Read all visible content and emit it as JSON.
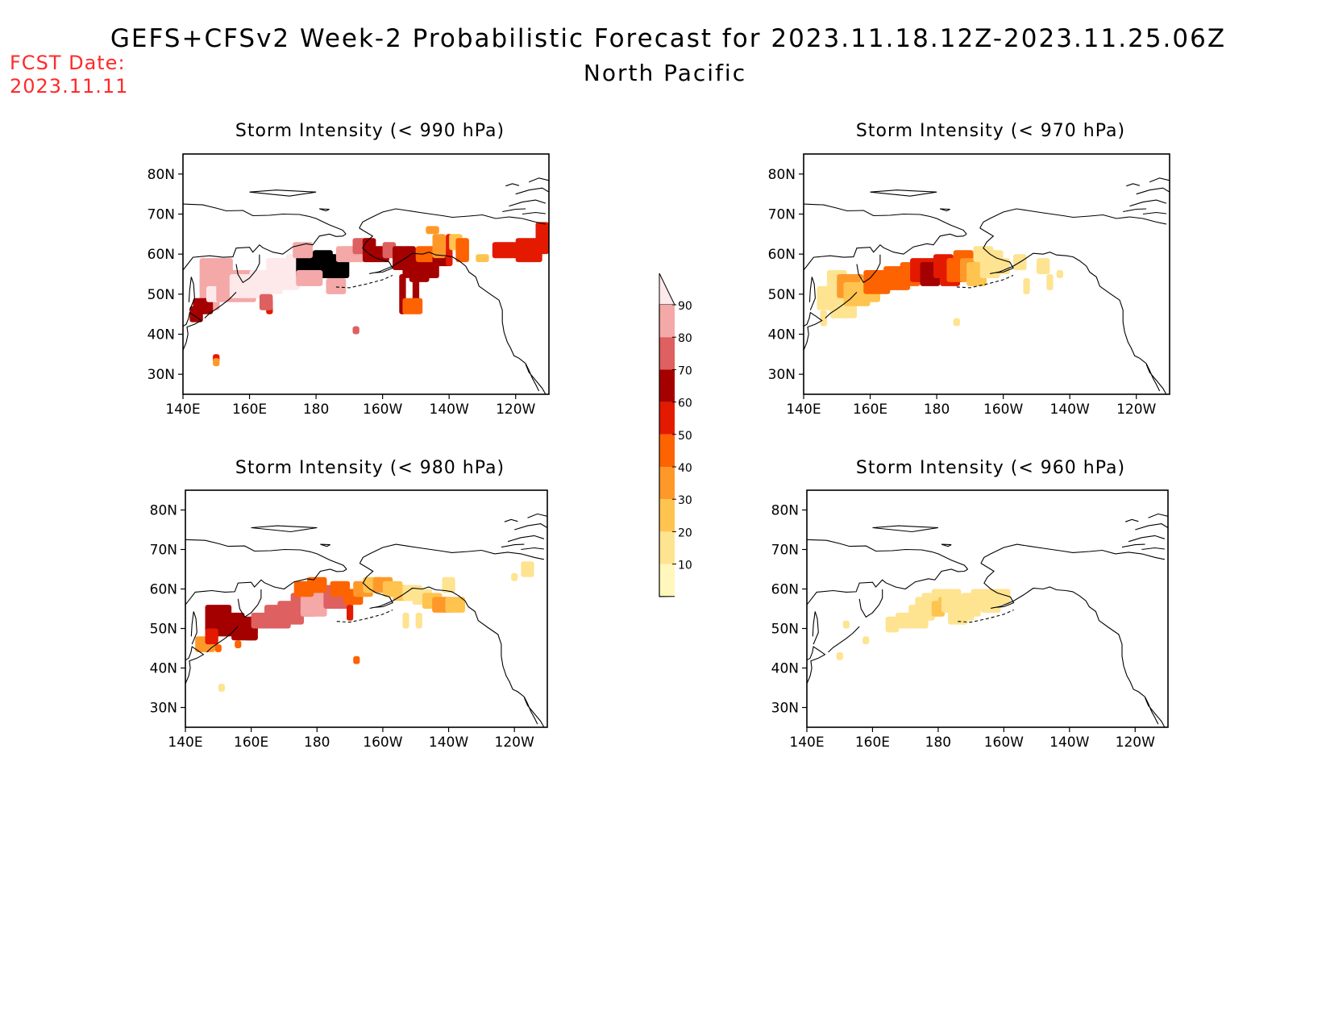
{
  "header": {
    "title": "GEFS+CFSv2 Week-2 Probabilistic Forecast for 2023.11.18.12Z-2023.11.25.06Z",
    "subtitle": "North Pacific",
    "fcst_label": "FCST Date:",
    "fcst_date": "2023.11.11"
  },
  "axes": {
    "lon_ticks": [
      "140E",
      "160E",
      "180",
      "160W",
      "140W",
      "120W"
    ],
    "lat_ticks": [
      "80N",
      "70N",
      "60N",
      "50N",
      "40N",
      "30N"
    ],
    "lon_values": [
      140,
      160,
      180,
      200,
      220,
      240
    ],
    "lat_values": [
      80,
      70,
      60,
      50,
      40,
      30
    ],
    "lon_range": [
      140,
      250
    ],
    "lat_range": [
      25,
      85
    ]
  },
  "colorbar": {
    "levels": [
      "10",
      "20",
      "30",
      "40",
      "50",
      "60",
      "70",
      "80",
      "90"
    ],
    "colors": [
      "#fff7bc",
      "#fee391",
      "#fec44f",
      "#fe9929",
      "#fd6300",
      "#e31a00",
      "#a50000",
      "#de6060",
      "#f4a8a8",
      "#fde8ea"
    ]
  },
  "panels": [
    {
      "id": "p990",
      "title": "Storm Intensity (< 990 hPa)"
    },
    {
      "id": "p970",
      "title": "Storm Intensity (< 970 hPa)"
    },
    {
      "id": "p980",
      "title": "Storm Intensity (< 980 hPa)"
    },
    {
      "id": "p960",
      "title": "Storm Intensity (< 960 hPa)"
    }
  ],
  "fields": {
    "p990": [
      [
        150,
        55,
        5,
        4,
        8
      ],
      [
        148,
        50,
        3,
        4,
        8
      ],
      [
        146,
        47,
        3,
        2,
        6
      ],
      [
        144,
        45,
        2,
        2,
        6
      ],
      [
        149,
        50,
        2,
        2,
        9
      ],
      [
        156,
        52,
        6,
        4,
        8
      ],
      [
        160,
        52,
        6,
        3,
        9
      ],
      [
        165,
        53,
        5,
        3,
        9
      ],
      [
        170,
        55,
        5,
        4,
        9
      ],
      [
        175,
        57,
        4,
        3,
        9
      ],
      [
        180,
        57,
        6,
        3,
        10
      ],
      [
        182,
        58,
        3,
        3,
        10
      ],
      [
        186,
        57,
        4,
        3,
        10
      ],
      [
        178,
        54,
        4,
        2,
        8
      ],
      [
        186,
        52,
        3,
        2,
        8
      ],
      [
        189,
        60,
        3,
        2,
        8
      ],
      [
        192,
        60,
        3,
        2,
        8
      ],
      [
        176,
        61,
        3,
        2,
        8
      ],
      [
        194,
        62,
        3,
        2,
        7
      ],
      [
        196,
        61,
        2,
        3,
        6
      ],
      [
        199,
        60,
        3,
        2,
        6
      ],
      [
        202,
        61,
        2,
        2,
        7
      ],
      [
        205,
        59,
        2,
        3,
        6
      ],
      [
        208,
        58,
        2,
        4,
        6
      ],
      [
        211,
        56,
        3,
        3,
        6
      ],
      [
        206,
        50,
        1,
        5,
        6
      ],
      [
        210,
        51,
        1,
        4,
        6
      ],
      [
        209,
        47,
        3,
        2,
        4
      ],
      [
        214,
        57,
        3,
        3,
        6
      ],
      [
        213,
        60,
        3,
        2,
        4
      ],
      [
        218,
        59,
        3,
        2,
        6
      ],
      [
        217,
        62,
        2,
        3,
        3
      ],
      [
        220,
        61,
        1,
        4,
        5
      ],
      [
        222,
        63,
        2,
        2,
        2
      ],
      [
        224,
        61,
        2,
        3,
        4
      ],
      [
        215,
        66,
        2,
        1,
        3
      ],
      [
        230,
        59,
        2,
        1,
        2
      ],
      [
        238,
        61,
        5,
        2,
        5
      ],
      [
        244,
        61,
        4,
        3,
        5
      ],
      [
        248,
        64,
        2,
        4,
        5
      ],
      [
        166,
        47,
        1,
        2,
        5
      ],
      [
        192,
        41,
        1,
        1,
        7
      ],
      [
        150,
        34,
        1,
        1,
        5
      ],
      [
        150,
        33,
        1,
        1,
        3
      ],
      [
        165,
        48,
        2,
        2,
        7
      ]
    ],
    "p970": [
      [
        150,
        53,
        3,
        3,
        1
      ],
      [
        148,
        49,
        4,
        3,
        1
      ],
      [
        152,
        46,
        4,
        2,
        1
      ],
      [
        154,
        52,
        4,
        3,
        3
      ],
      [
        156,
        50,
        4,
        3,
        2
      ],
      [
        160,
        51,
        3,
        3,
        2
      ],
      [
        162,
        53,
        4,
        3,
        4
      ],
      [
        168,
        54,
        4,
        3,
        4
      ],
      [
        172,
        55,
        3,
        3,
        4
      ],
      [
        176,
        56,
        4,
        3,
        5
      ],
      [
        178,
        55,
        3,
        3,
        6
      ],
      [
        180,
        56,
        2,
        2,
        6
      ],
      [
        182,
        57,
        3,
        3,
        5
      ],
      [
        184,
        55,
        3,
        3,
        5
      ],
      [
        186,
        56,
        3,
        3,
        4
      ],
      [
        188,
        58,
        3,
        3,
        4
      ],
      [
        190,
        56,
        3,
        3,
        3
      ],
      [
        192,
        55,
        3,
        3,
        2
      ],
      [
        196,
        57,
        3,
        3,
        1
      ],
      [
        194,
        60,
        3,
        2,
        1
      ],
      [
        198,
        59,
        2,
        2,
        1
      ],
      [
        200,
        57,
        2,
        2,
        1
      ],
      [
        205,
        58,
        2,
        2,
        1
      ],
      [
        212,
        57,
        2,
        2,
        1
      ],
      [
        207,
        52,
        1,
        2,
        1
      ],
      [
        214,
        53,
        1,
        2,
        1
      ],
      [
        217,
        55,
        1,
        1,
        1
      ],
      [
        186,
        43,
        1,
        1,
        1
      ],
      [
        146,
        44,
        1,
        2,
        1
      ]
    ],
    "p980": [
      [
        150,
        52,
        4,
        4,
        6
      ],
      [
        154,
        51,
        4,
        3,
        6
      ],
      [
        158,
        50,
        4,
        3,
        6
      ],
      [
        160,
        49,
        2,
        2,
        6
      ],
      [
        146,
        46,
        3,
        2,
        3
      ],
      [
        148,
        48,
        2,
        2,
        5
      ],
      [
        150,
        45,
        1,
        1,
        4
      ],
      [
        156,
        46,
        1,
        1,
        4
      ],
      [
        164,
        52,
        4,
        2,
        7
      ],
      [
        168,
        53,
        4,
        3,
        7
      ],
      [
        172,
        54,
        4,
        3,
        7
      ],
      [
        176,
        56,
        4,
        3,
        7
      ],
      [
        179,
        57,
        4,
        4,
        8
      ],
      [
        182,
        58,
        3,
        3,
        8
      ],
      [
        185,
        58,
        3,
        3,
        7
      ],
      [
        188,
        57,
        3,
        2,
        7
      ],
      [
        176,
        60,
        3,
        2,
        4
      ],
      [
        180,
        61,
        3,
        2,
        4
      ],
      [
        187,
        60,
        3,
        2,
        4
      ],
      [
        191,
        58,
        3,
        2,
        4
      ],
      [
        190,
        54,
        1,
        2,
        5
      ],
      [
        194,
        60,
        3,
        2,
        3
      ],
      [
        197,
        61,
        3,
        2,
        2
      ],
      [
        200,
        61,
        3,
        2,
        3
      ],
      [
        203,
        60,
        3,
        2,
        2
      ],
      [
        206,
        59,
        3,
        2,
        2
      ],
      [
        209,
        59,
        3,
        2,
        1
      ],
      [
        212,
        58,
        3,
        2,
        1
      ],
      [
        215,
        57,
        3,
        2,
        2
      ],
      [
        218,
        56,
        3,
        2,
        3
      ],
      [
        222,
        56,
        3,
        2,
        2
      ],
      [
        207,
        52,
        1,
        2,
        1
      ],
      [
        211,
        52,
        1,
        2,
        1
      ],
      [
        220,
        61,
        2,
        2,
        1
      ],
      [
        244,
        65,
        2,
        2,
        1
      ],
      [
        240,
        63,
        1,
        1,
        1
      ],
      [
        192,
        42,
        1,
        1,
        4
      ],
      [
        151,
        35,
        1,
        1,
        1
      ]
    ],
    "p960": [
      [
        152,
        51,
        1,
        1,
        1
      ],
      [
        166,
        51,
        2,
        2,
        1
      ],
      [
        170,
        52,
        3,
        2,
        1
      ],
      [
        174,
        53,
        3,
        3,
        1
      ],
      [
        176,
        55,
        3,
        3,
        1
      ],
      [
        178,
        56,
        3,
        3,
        1
      ],
      [
        180,
        57,
        2,
        3,
        1
      ],
      [
        182,
        56,
        2,
        2,
        2
      ],
      [
        180,
        55,
        2,
        2,
        2
      ],
      [
        184,
        57,
        3,
        3,
        1
      ],
      [
        186,
        54,
        3,
        3,
        1
      ],
      [
        188,
        55,
        3,
        3,
        1
      ],
      [
        190,
        56,
        3,
        3,
        1
      ],
      [
        193,
        58,
        3,
        2,
        1
      ],
      [
        196,
        57,
        3,
        3,
        1
      ],
      [
        200,
        58,
        2,
        2,
        1
      ],
      [
        158,
        47,
        1,
        1,
        1
      ],
      [
        150,
        43,
        1,
        1,
        1
      ]
    ]
  }
}
